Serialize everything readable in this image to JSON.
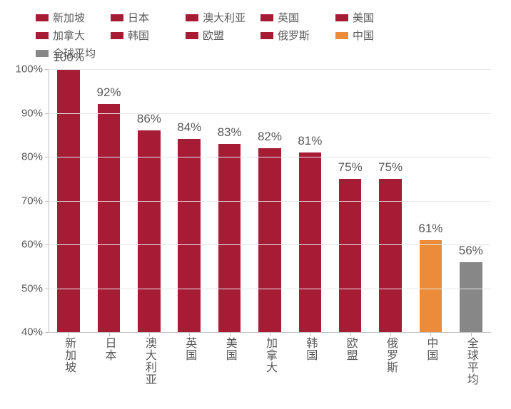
{
  "chart": {
    "type": "bar",
    "background_color": "#ffffff",
    "grid_color": "#e6e6e6",
    "axis_color": "#bfbfbf",
    "text_color": "#595959",
    "label_fontsize": 15,
    "data_label_fontsize": 17,
    "axis_label_fontsize": 16,
    "ylim": [
      40,
      100
    ],
    "ytick_step": 10,
    "yticks": [
      {
        "value": 40,
        "label": "40%"
      },
      {
        "value": 50,
        "label": "50%"
      },
      {
        "value": 60,
        "label": "60%"
      },
      {
        "value": 70,
        "label": "70%"
      },
      {
        "value": 80,
        "label": "80%"
      },
      {
        "value": 90,
        "label": "90%"
      },
      {
        "value": 100,
        "label": "100%"
      }
    ],
    "bar_width": 0.56,
    "series": [
      {
        "name": "新加坡",
        "value": 100,
        "label": "100%",
        "color": "#a61c35"
      },
      {
        "name": "日本",
        "value": 92,
        "label": "92%",
        "color": "#a61c35"
      },
      {
        "name": "澳大利亚",
        "value": 86,
        "label": "86%",
        "color": "#a61c35"
      },
      {
        "name": "英国",
        "value": 84,
        "label": "84%",
        "color": "#a61c35"
      },
      {
        "name": "美国",
        "value": 83,
        "label": "83%",
        "color": "#a61c35"
      },
      {
        "name": "加拿大",
        "value": 82,
        "label": "82%",
        "color": "#a61c35"
      },
      {
        "name": "韩国",
        "value": 81,
        "label": "81%",
        "color": "#a61c35"
      },
      {
        "name": "欧盟",
        "value": 75,
        "label": "75%",
        "color": "#a61c35"
      },
      {
        "name": "俄罗斯",
        "value": 75,
        "label": "75%",
        "color": "#a61c35"
      },
      {
        "name": "中国",
        "value": 61,
        "label": "61%",
        "color": "#ec8c3a"
      },
      {
        "name": "全球平均",
        "value": 56,
        "label": "56%",
        "color": "#878787"
      }
    ],
    "legend_items": [
      {
        "label": "新加坡",
        "color": "#a61c35"
      },
      {
        "label": "日本",
        "color": "#a61c35"
      },
      {
        "label": "澳大利亚",
        "color": "#a61c35"
      },
      {
        "label": "英国",
        "color": "#a61c35"
      },
      {
        "label": "美国",
        "color": "#a61c35"
      },
      {
        "label": "加拿大",
        "color": "#a61c35"
      },
      {
        "label": "韩国",
        "color": "#a61c35"
      },
      {
        "label": "欧盟",
        "color": "#a61c35"
      },
      {
        "label": "俄罗斯",
        "color": "#a61c35"
      },
      {
        "label": "中国",
        "color": "#ec8c3a"
      },
      {
        "label": "全球平均",
        "color": "#878787"
      }
    ]
  }
}
